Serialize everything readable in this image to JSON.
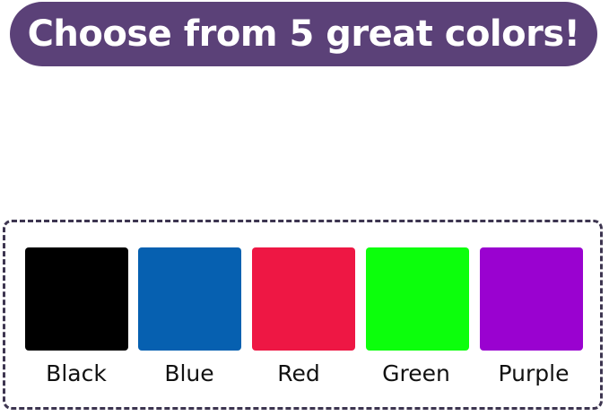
{
  "banner": {
    "title": "Choose from 5 great colors!",
    "color": "#5b4178"
  },
  "colors": [
    {
      "label": "Black",
      "hex": "#000000"
    },
    {
      "label": "Blue",
      "hex": "#0660b0"
    },
    {
      "label": "Red",
      "hex": "#ee1744"
    },
    {
      "label": "Green",
      "hex": "#0cff0c"
    },
    {
      "label": "Purple",
      "hex": "#9a02d0"
    }
  ]
}
